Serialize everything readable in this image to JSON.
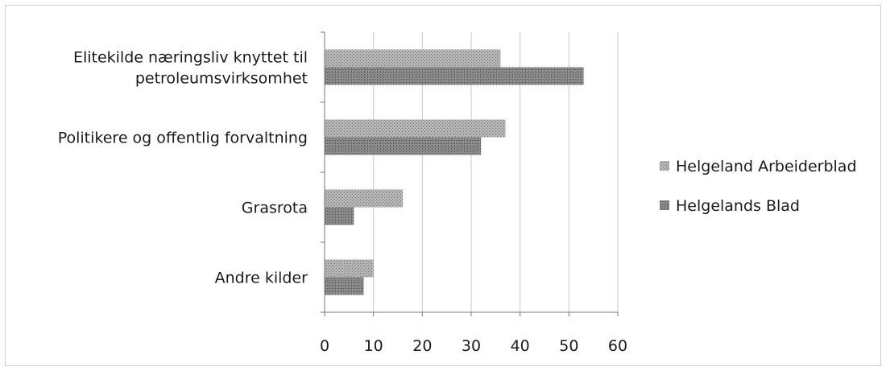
{
  "chart_data": {
    "type": "bar",
    "orientation": "horizontal",
    "categories": [
      [
        "Elitekilde næringsliv knyttet til",
        "petroleumsvirksomhet"
      ],
      [
        "Politikere og offentlig forvaltning"
      ],
      [
        "Grasrota"
      ],
      [
        "Andre kilder"
      ]
    ],
    "series": [
      {
        "name": "Helgeland Arbeiderblad",
        "values": [
          36,
          37,
          16,
          10
        ],
        "color": "#9a9a9a"
      },
      {
        "name": "Helgelands Blad",
        "values": [
          53,
          32,
          6,
          8
        ],
        "color": "#7f7f7f"
      }
    ],
    "xlim": [
      0,
      60
    ],
    "xticks": [
      "0",
      "10",
      "20",
      "30",
      "40",
      "50",
      "60"
    ],
    "grid": true,
    "legend_position": "right"
  }
}
